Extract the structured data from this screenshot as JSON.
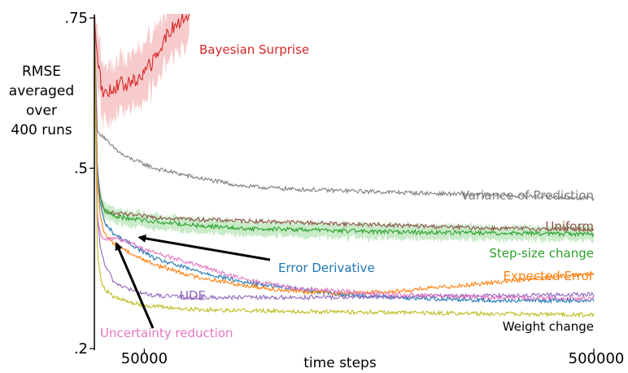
{
  "chart_data": {
    "type": "line",
    "title": "",
    "xlabel": "time steps",
    "ylabel_lines": [
      "RMSE",
      "averaged",
      "over",
      "400 runs"
    ],
    "x_ticks": [
      {
        "value": 50000,
        "label": "50000"
      },
      {
        "value": 500000,
        "label": "500000"
      }
    ],
    "y_ticks": [
      {
        "value": 0.2,
        "label": ".2"
      },
      {
        "value": 0.5,
        "label": ".5"
      },
      {
        "value": 0.75,
        "label": ".75"
      }
    ],
    "xlim": [
      0,
      500000
    ],
    "ylim": [
      0.2,
      0.75
    ],
    "legend": "inline labels at right end of each line",
    "series": [
      {
        "name": "Bayesian Surprise",
        "color": "#d62728",
        "band_color": "#f4b9b9",
        "x": [
          0,
          3000,
          8000,
          15000,
          25000,
          35000,
          45000,
          55000,
          65000,
          75000,
          85000,
          95000
        ],
        "y": [
          0.75,
          0.69,
          0.625,
          0.63,
          0.64,
          0.64,
          0.65,
          0.67,
          0.69,
          0.73,
          0.74,
          0.76
        ]
      },
      {
        "name": "Variance of Prediction",
        "color": "#7f7f7f",
        "x": [
          0,
          3000,
          8000,
          15000,
          30000,
          60000,
          100000,
          150000,
          200000,
          300000,
          400000,
          500000
        ],
        "y": [
          0.75,
          0.56,
          0.555,
          0.54,
          0.52,
          0.5,
          0.485,
          0.47,
          0.465,
          0.46,
          0.455,
          0.45
        ]
      },
      {
        "name": "Uniform",
        "color": "#8c564b",
        "x": [
          0,
          3000,
          6000,
          10000,
          20000,
          50000,
          100000,
          200000,
          300000,
          400000,
          500000
        ],
        "y": [
          0.75,
          0.5,
          0.45,
          0.43,
          0.425,
          0.42,
          0.415,
          0.41,
          0.405,
          0.4,
          0.398
        ]
      },
      {
        "name": "Step-size change",
        "color": "#2ca02c",
        "band_color": "#b7e4b7",
        "x": [
          0,
          3000,
          6000,
          10000,
          20000,
          40000,
          70000,
          100000,
          150000,
          200000,
          300000,
          400000,
          500000
        ],
        "y": [
          0.75,
          0.47,
          0.45,
          0.43,
          0.42,
          0.415,
          0.41,
          0.405,
          0.4,
          0.398,
          0.394,
          0.392,
          0.39
        ]
      },
      {
        "name": "Error Derivative",
        "color": "#1f77b4",
        "x": [
          0,
          3000,
          6000,
          10000,
          20000,
          40000,
          60000,
          100000,
          150000,
          200000,
          250000,
          300000,
          400000,
          500000
        ],
        "y": [
          0.75,
          0.5,
          0.44,
          0.41,
          0.39,
          0.37,
          0.35,
          0.33,
          0.31,
          0.3,
          0.29,
          0.285,
          0.28,
          0.28
        ]
      },
      {
        "name": "Expected Error",
        "color": "#ff7f0e",
        "x": [
          0,
          3000,
          6000,
          10000,
          20000,
          40000,
          60000,
          100000,
          150000,
          200000,
          250000,
          300000,
          400000,
          500000
        ],
        "y": [
          0.75,
          0.48,
          0.42,
          0.39,
          0.375,
          0.355,
          0.34,
          0.32,
          0.305,
          0.295,
          0.292,
          0.295,
          0.31,
          0.325
        ]
      },
      {
        "name": "UDE",
        "color": "#9467bd",
        "x": [
          0,
          3000,
          6000,
          10000,
          20000,
          40000,
          60000,
          100000,
          150000,
          200000,
          300000,
          400000,
          500000
        ],
        "y": [
          0.75,
          0.42,
          0.37,
          0.34,
          0.31,
          0.295,
          0.288,
          0.285,
          0.285,
          0.285,
          0.286,
          0.288,
          0.29
        ]
      },
      {
        "name": "Uncertainty reduction",
        "color": "#e377c2",
        "x": [
          0,
          3000,
          6000,
          10000,
          20000,
          30000,
          50000,
          100000,
          150000,
          200000,
          300000,
          400000,
          500000
        ],
        "y": [
          0.75,
          0.42,
          0.39,
          0.38,
          0.385,
          0.38,
          0.365,
          0.34,
          0.315,
          0.3,
          0.29,
          0.285,
          0.283
        ]
      },
      {
        "name": "Weight change",
        "color": "#bcbd22",
        "x": [
          0,
          3000,
          6000,
          10000,
          20000,
          40000,
          60000,
          100000,
          200000,
          300000,
          400000,
          500000
        ],
        "y": [
          0.75,
          0.36,
          0.32,
          0.3,
          0.285,
          0.275,
          0.27,
          0.265,
          0.262,
          0.26,
          0.258,
          0.256
        ]
      }
    ],
    "series_labels": [
      {
        "text": "Bayesian Surprise",
        "color": "#d62728"
      },
      {
        "text": "Variance of Prediction",
        "color": "#7f7f7f"
      },
      {
        "text": "Uniform",
        "color": "#8c564b"
      },
      {
        "text": "Step-size change",
        "color": "#2ca02c"
      },
      {
        "text": "Expected Error",
        "color": "#ff7f0e"
      },
      {
        "text": "UDE",
        "color": "#9467bd"
      },
      {
        "text": "Weight change",
        "color": "#000000"
      }
    ],
    "annotations": [
      {
        "text": "Error Derivative",
        "color": "#1f77b4",
        "arrow_to": {
          "x": 45000,
          "y": 0.385
        }
      },
      {
        "text": "Uncertainty reduction",
        "color": "#e377c2",
        "arrow_to": {
          "x": 22000,
          "y": 0.375
        }
      }
    ]
  }
}
